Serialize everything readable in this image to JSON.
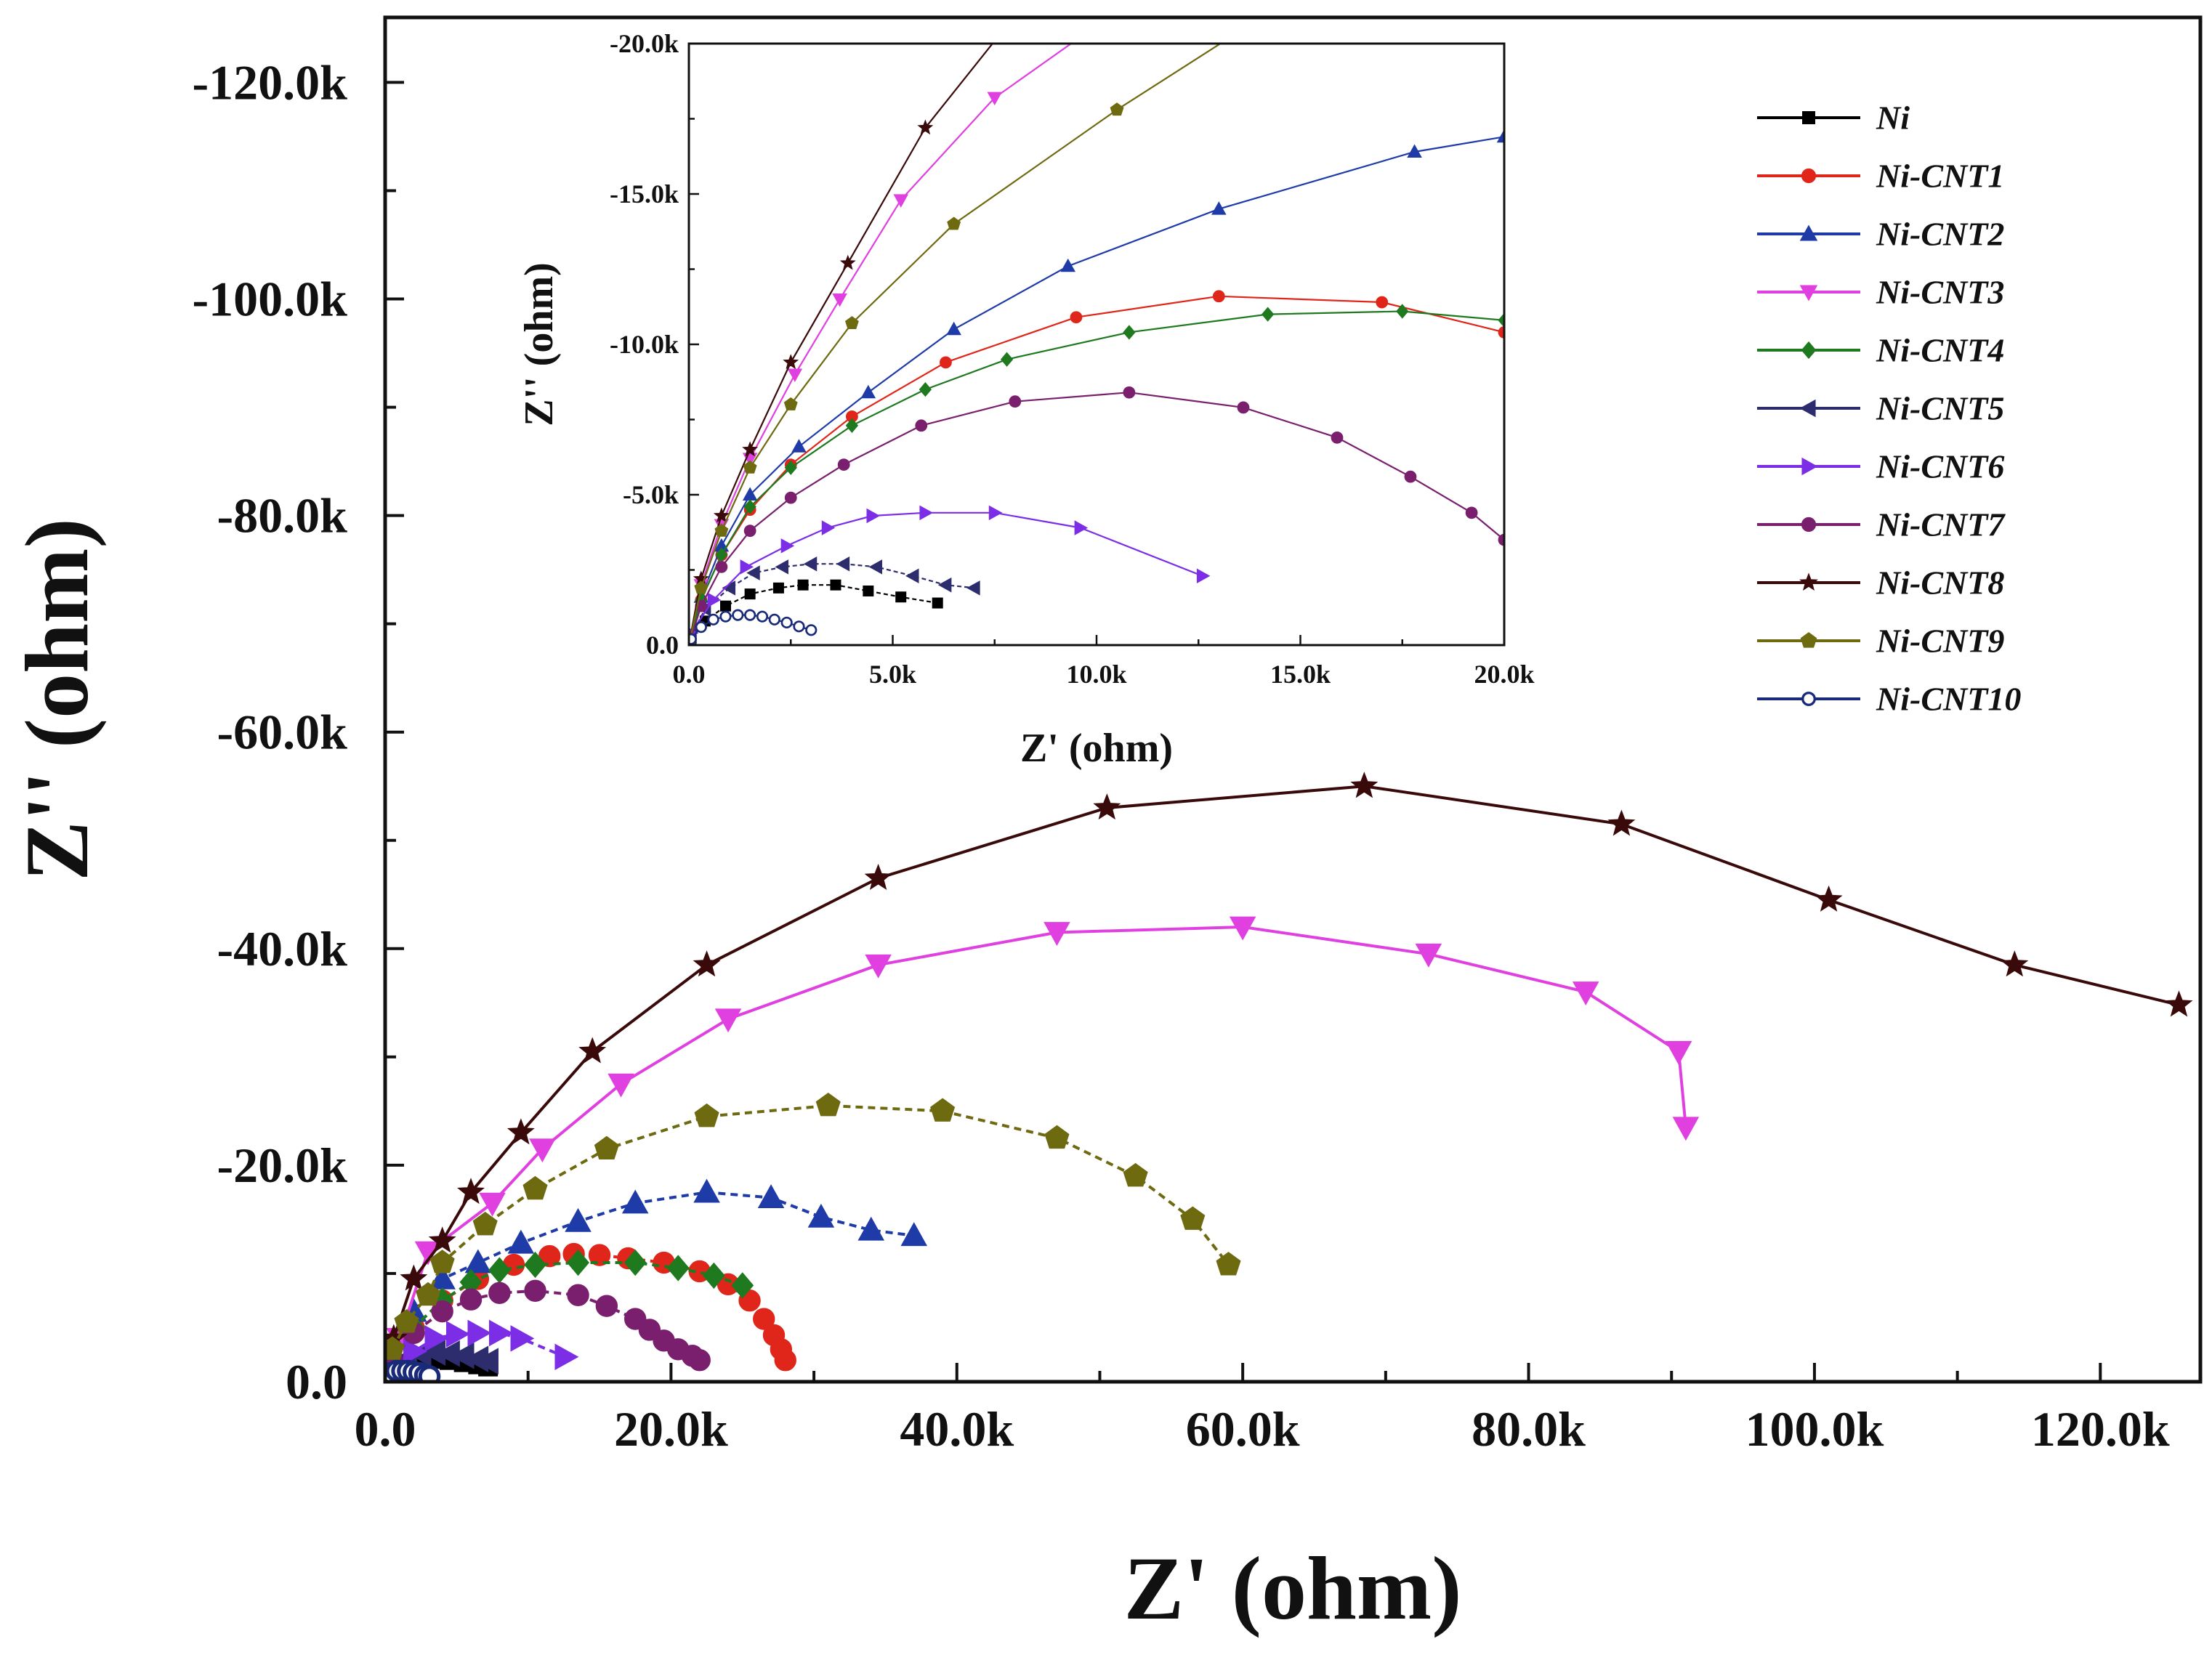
{
  "chart_data": [
    {
      "id": "main",
      "type": "scatter",
      "title": "",
      "xlabel": "Z' (ohm)",
      "ylabel": "Z'' (ohm)",
      "xlim": [
        0,
        127000
      ],
      "ylim": [
        0,
        126000
      ],
      "x_ticks": [
        {
          "value": 0,
          "label": "0.0"
        },
        {
          "value": 20000,
          "label": "20.0k"
        },
        {
          "value": 40000,
          "label": "40.0k"
        },
        {
          "value": 60000,
          "label": "60.0k"
        },
        {
          "value": 80000,
          "label": "80.0k"
        },
        {
          "value": 100000,
          "label": "100.0k"
        },
        {
          "value": 120000,
          "label": "120.0k"
        }
      ],
      "y_ticks": [
        {
          "value": 0,
          "label": "0.0"
        },
        {
          "value": 20000,
          "label": "-20.0k"
        },
        {
          "value": 40000,
          "label": "-40.0k"
        },
        {
          "value": 60000,
          "label": "-60.0k"
        },
        {
          "value": 80000,
          "label": "-80.0k"
        },
        {
          "value": 100000,
          "label": "-100.0k"
        },
        {
          "value": 120000,
          "label": "-120.0k"
        }
      ],
      "note": "y values are -Z'' in ohm",
      "series": [
        {
          "name": "Ni",
          "color": "#000000",
          "marker": "square",
          "dash": "10,7",
          "x": [
            0.6,
            1.5,
            2.5,
            3.5,
            4.5,
            5.5,
            6.5,
            7.2
          ],
          "y": [
            0.7,
            1.5,
            1.9,
            2.1,
            2.0,
            1.8,
            1.6,
            1.4
          ]
        },
        {
          "name": "Ni-CNT1",
          "color": "#e0261a",
          "marker": "circle",
          "dash": "10,7",
          "x": [
            0.5,
            2,
            4,
            6.5,
            9,
            11.5,
            13.2,
            15,
            17,
            19.5,
            22,
            24,
            25.5,
            26.5,
            27.2,
            27.7,
            28
          ],
          "y": [
            2,
            5,
            7.5,
            9.5,
            10.8,
            11.6,
            11.8,
            11.7,
            11.4,
            11.0,
            10.2,
            9.0,
            7.5,
            5.8,
            4.3,
            3.0,
            2.0
          ]
        },
        {
          "name": "Ni-CNT2",
          "color": "#1f3ba8",
          "marker": "triangle-up",
          "dash": "10,7",
          "x": [
            0.5,
            2,
            4,
            6.5,
            9.5,
            13.5,
            17.5,
            22.5,
            27,
            30.5,
            34,
            37
          ],
          "y": [
            2.5,
            6.5,
            9.5,
            11.0,
            12.8,
            14.8,
            16.5,
            17.5,
            17.0,
            15.2,
            14.0,
            13.5
          ]
        },
        {
          "name": "Ni-CNT3",
          "color": "#e040e0",
          "marker": "triangle-down",
          "dash": "",
          "x": [
            1,
            3,
            7.5,
            11,
            16.5,
            24,
            34.5,
            47,
            60,
            73,
            84,
            90.5,
            91
          ],
          "y": [
            4,
            12,
            16.5,
            21.5,
            27.5,
            33.5,
            38.5,
            41.5,
            42,
            39.5,
            36,
            30.5,
            23.5
          ]
        },
        {
          "name": "Ni-CNT4",
          "color": "#1f7a1f",
          "marker": "diamond",
          "dash": "10,7",
          "x": [
            0.5,
            2,
            4,
            6,
            8,
            10.5,
            13.5,
            17.5,
            20.5,
            23,
            25
          ],
          "y": [
            2,
            5,
            7.5,
            9.2,
            10.3,
            10.8,
            11.0,
            11.0,
            10.5,
            9.8,
            8.9
          ]
        },
        {
          "name": "Ni-CNT5",
          "color": "#2d2d6e",
          "marker": "triangle-left",
          "dash": "10,7",
          "x": [
            0.4,
            1.5,
            2.5,
            3.5,
            4.5,
            5.5,
            6.5,
            7.2
          ],
          "y": [
            1,
            2.1,
            2.6,
            2.7,
            2.6,
            2.4,
            2.1,
            1.9
          ]
        },
        {
          "name": "Ni-CNT6",
          "color": "#7b2ee6",
          "marker": "triangle-right",
          "dash": "10,7",
          "x": [
            0.4,
            2,
            3.5,
            5,
            6.5,
            8,
            9.5,
            12.6
          ],
          "y": [
            1,
            2.8,
            4.0,
            4.4,
            4.5,
            4.5,
            4.0,
            2.3
          ]
        },
        {
          "name": "Ni-CNT7",
          "color": "#7a1f6e",
          "marker": "circle",
          "dash": "10,7",
          "x": [
            0.5,
            2,
            4,
            6,
            8,
            10.5,
            13.5,
            15.5,
            17.5,
            18.5,
            19.5,
            20.5,
            21.5,
            22
          ],
          "y": [
            2,
            4.5,
            6.5,
            7.6,
            8.2,
            8.4,
            8.0,
            7.0,
            5.8,
            4.8,
            3.8,
            3.0,
            2.4,
            2.0
          ]
        },
        {
          "name": "Ni-CNT8",
          "color": "#3a0a0a",
          "marker": "star",
          "dash": "",
          "x": [
            0.6,
            2,
            4,
            6,
            9.5,
            14.5,
            22.5,
            34.5,
            50.5,
            68.5,
            86.5,
            101,
            114,
            125.5
          ],
          "y": [
            4,
            9.5,
            13,
            17.5,
            23,
            30.5,
            38.5,
            46.5,
            53,
            55,
            51.5,
            44.5,
            38.5,
            34.8
          ]
        },
        {
          "name": "Ni-CNT9",
          "color": "#6e6a10",
          "marker": "pentagon",
          "dash": "10,7",
          "x": [
            0.5,
            1.5,
            3,
            4,
            7,
            10.5,
            15.5,
            22.5,
            31,
            39,
            47,
            52.5,
            56.5,
            59
          ],
          "y": [
            3,
            5.5,
            8,
            11,
            14.5,
            17.8,
            21.5,
            24.5,
            25.5,
            25,
            22.5,
            19,
            15,
            10.8
          ]
        },
        {
          "name": "Ni-CNT10",
          "color": "#1a2a7a",
          "marker": "open-circle",
          "dash": "10,7",
          "x": [
            0.1,
            0.4,
            0.8,
            1.2,
            1.6,
            2.0,
            2.4,
            2.8,
            3.1
          ],
          "y": [
            0.4,
            0.8,
            1.0,
            1.0,
            1.0,
            0.9,
            0.8,
            0.6,
            0.5
          ]
        }
      ]
    },
    {
      "id": "inset",
      "type": "scatter",
      "title": "",
      "xlabel": "Z' (ohm)",
      "ylabel": "Z'' (ohm)",
      "xlim": [
        0,
        20000
      ],
      "ylim": [
        0,
        20000
      ],
      "x_ticks": [
        {
          "value": 0,
          "label": "0.0"
        },
        {
          "value": 5000,
          "label": "5.0k"
        },
        {
          "value": 10000,
          "label": "10.0k"
        },
        {
          "value": 15000,
          "label": "15.0k"
        },
        {
          "value": 20000,
          "label": "20.0k"
        }
      ],
      "y_ticks": [
        {
          "value": 0,
          "label": "0.0"
        },
        {
          "value": 5000,
          "label": "-5.0k"
        },
        {
          "value": 10000,
          "label": "-10.0k"
        },
        {
          "value": 15000,
          "label": "-15.0k"
        },
        {
          "value": 20000,
          "label": "-20.0k"
        }
      ],
      "note": "zoom of low-impedance region; y values are -Z'' in ohm",
      "series": [
        {
          "name": "Ni",
          "color": "#000000",
          "marker": "square",
          "dash": "6,4",
          "x": [
            0.05,
            0.4,
            0.9,
            1.5,
            2.2,
            2.8,
            3.6,
            4.4,
            5.2,
            6.1
          ],
          "y": [
            0.2,
            0.8,
            1.3,
            1.7,
            1.9,
            2.0,
            2.0,
            1.8,
            1.6,
            1.4
          ]
        },
        {
          "name": "Ni-CNT1",
          "color": "#e0261a",
          "marker": "circle",
          "dash": "",
          "x": [
            0,
            0.3,
            0.8,
            1.5,
            2.5,
            4.0,
            6.3,
            9.5,
            13.0,
            17.0,
            20.0
          ],
          "y": [
            0,
            1.5,
            3.0,
            4.5,
            6.0,
            7.6,
            9.4,
            10.9,
            11.6,
            11.4,
            10.4
          ]
        },
        {
          "name": "Ni-CNT2",
          "color": "#1f3ba8",
          "marker": "triangle-up",
          "dash": "",
          "x": [
            0,
            0.3,
            0.8,
            1.5,
            2.7,
            4.4,
            6.5,
            9.3,
            13.0,
            17.8,
            20.0
          ],
          "y": [
            0,
            1.6,
            3.3,
            5.0,
            6.6,
            8.4,
            10.5,
            12.6,
            14.5,
            16.4,
            16.9
          ]
        },
        {
          "name": "Ni-CNT3",
          "color": "#e040e0",
          "marker": "triangle-down",
          "dash": "",
          "x": [
            0,
            0.3,
            0.8,
            1.5,
            2.6,
            3.7,
            5.2,
            7.5,
            10.0
          ],
          "y": [
            0,
            2.0,
            4.0,
            6.2,
            9.0,
            11.5,
            14.8,
            18.2,
            20.6
          ]
        },
        {
          "name": "Ni-CNT4",
          "color": "#1f7a1f",
          "marker": "diamond",
          "dash": "",
          "x": [
            0,
            0.3,
            0.8,
            1.5,
            2.5,
            4.0,
            5.8,
            7.8,
            10.8,
            14.2,
            17.5,
            20.0
          ],
          "y": [
            0,
            1.5,
            3.0,
            4.6,
            5.9,
            7.3,
            8.5,
            9.5,
            10.4,
            11.0,
            11.1,
            10.8
          ]
        },
        {
          "name": "Ni-CNT5",
          "color": "#2d2d6e",
          "marker": "triangle-left",
          "dash": "6,4",
          "x": [
            0.05,
            0.4,
            1.0,
            1.6,
            2.3,
            3.0,
            3.8,
            4.6,
            5.5,
            6.3,
            7.0
          ],
          "y": [
            0.3,
            1.2,
            1.9,
            2.4,
            2.6,
            2.7,
            2.7,
            2.6,
            2.3,
            2.0,
            1.9
          ]
        },
        {
          "name": "Ni-CNT6",
          "color": "#7b2ee6",
          "marker": "triangle-right",
          "dash": "",
          "x": [
            0.05,
            0.6,
            1.4,
            2.4,
            3.4,
            4.5,
            5.8,
            7.5,
            9.6,
            12.6
          ],
          "y": [
            0.4,
            1.5,
            2.6,
            3.3,
            3.9,
            4.3,
            4.4,
            4.4,
            3.9,
            2.3
          ]
        },
        {
          "name": "Ni-CNT7",
          "color": "#7a1f6e",
          "marker": "circle",
          "dash": "",
          "x": [
            0,
            0.3,
            0.8,
            1.5,
            2.5,
            3.8,
            5.7,
            8.0,
            10.8,
            13.6,
            15.9,
            17.7,
            19.2,
            20.0
          ],
          "y": [
            0,
            1.3,
            2.6,
            3.8,
            4.9,
            6.0,
            7.3,
            8.1,
            8.4,
            7.9,
            6.9,
            5.6,
            4.4,
            3.5
          ]
        },
        {
          "name": "Ni-CNT8",
          "color": "#3a0a0a",
          "marker": "star",
          "dash": "",
          "x": [
            0,
            0.3,
            0.8,
            1.5,
            2.5,
            3.9,
            5.8,
            7.8
          ],
          "y": [
            0,
            2.2,
            4.3,
            6.5,
            9.4,
            12.7,
            17.2,
            20.6
          ]
        },
        {
          "name": "Ni-CNT9",
          "color": "#6e6a10",
          "marker": "pentagon",
          "dash": "",
          "x": [
            0,
            0.3,
            0.8,
            1.5,
            2.5,
            4.0,
            6.5,
            10.5,
            13.5
          ],
          "y": [
            0,
            1.9,
            3.8,
            5.9,
            8.0,
            10.7,
            14.0,
            17.8,
            20.4
          ]
        },
        {
          "name": "Ni-CNT10",
          "color": "#1a2a7a",
          "marker": "open-circle",
          "dash": "",
          "x": [
            0.05,
            0.3,
            0.6,
            0.9,
            1.2,
            1.5,
            1.8,
            2.1,
            2.4,
            2.7,
            3.0
          ],
          "y": [
            0.2,
            0.6,
            0.85,
            0.95,
            1.0,
            1.0,
            0.95,
            0.85,
            0.75,
            0.62,
            0.5
          ]
        }
      ]
    }
  ],
  "legend": {
    "items": [
      "Ni",
      "Ni-CNT1",
      "Ni-CNT2",
      "Ni-CNT3",
      "Ni-CNT4",
      "Ni-CNT5",
      "Ni-CNT6",
      "Ni-CNT7",
      "Ni-CNT8",
      "Ni-CNT9",
      "Ni-CNT10"
    ]
  }
}
